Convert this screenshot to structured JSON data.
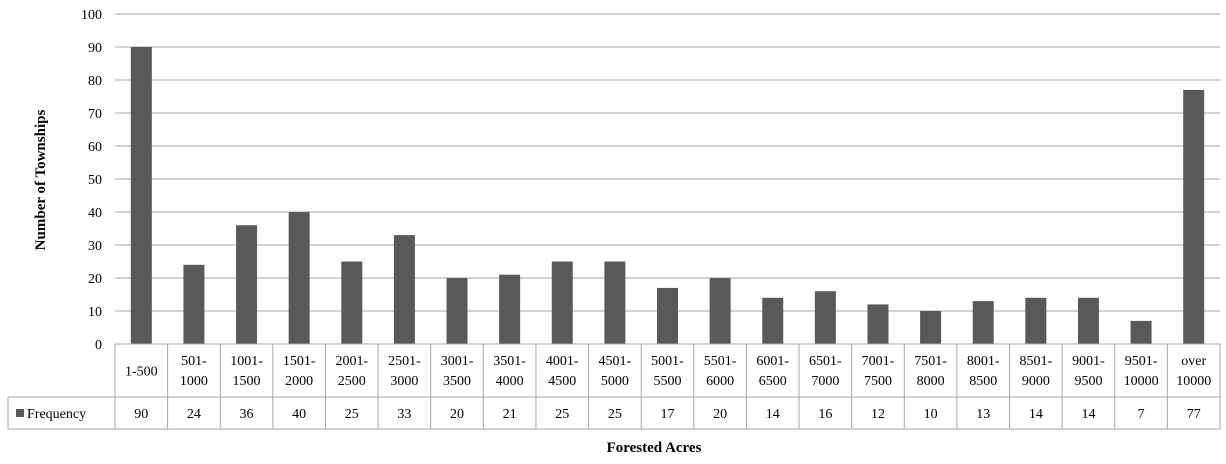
{
  "chart_data": {
    "type": "bar",
    "categories": [
      "1-500",
      "501-\n1000",
      "1001-\n1500",
      "1501-\n2000",
      "2001-\n2500",
      "2501-\n3000",
      "3001-\n3500",
      "3501-\n4000",
      "4001-\n4500",
      "4501-\n5000",
      "5001-\n5500",
      "5501-\n6000",
      "6001-\n6500",
      "6501-\n7000",
      "7001-\n7500",
      "7501-\n8000",
      "8001-\n8500",
      "8501-\n9000",
      "9001-\n9500",
      "9501-\n10000",
      "over\n10000"
    ],
    "series": [
      {
        "name": "Frequency",
        "values": [
          90,
          24,
          36,
          40,
          25,
          33,
          20,
          21,
          25,
          25,
          17,
          20,
          14,
          16,
          12,
          10,
          13,
          14,
          14,
          7,
          77
        ],
        "color": "#595959"
      }
    ],
    "xlabel": "Forested Acres",
    "ylabel": "Number of Townships",
    "ylim": [
      0,
      100
    ],
    "yticks": [
      0,
      10,
      20,
      30,
      40,
      50,
      60,
      70,
      80,
      90,
      100
    ],
    "grid": true,
    "legend": "data-table-left",
    "gridline_color": "#a6a6a6"
  }
}
